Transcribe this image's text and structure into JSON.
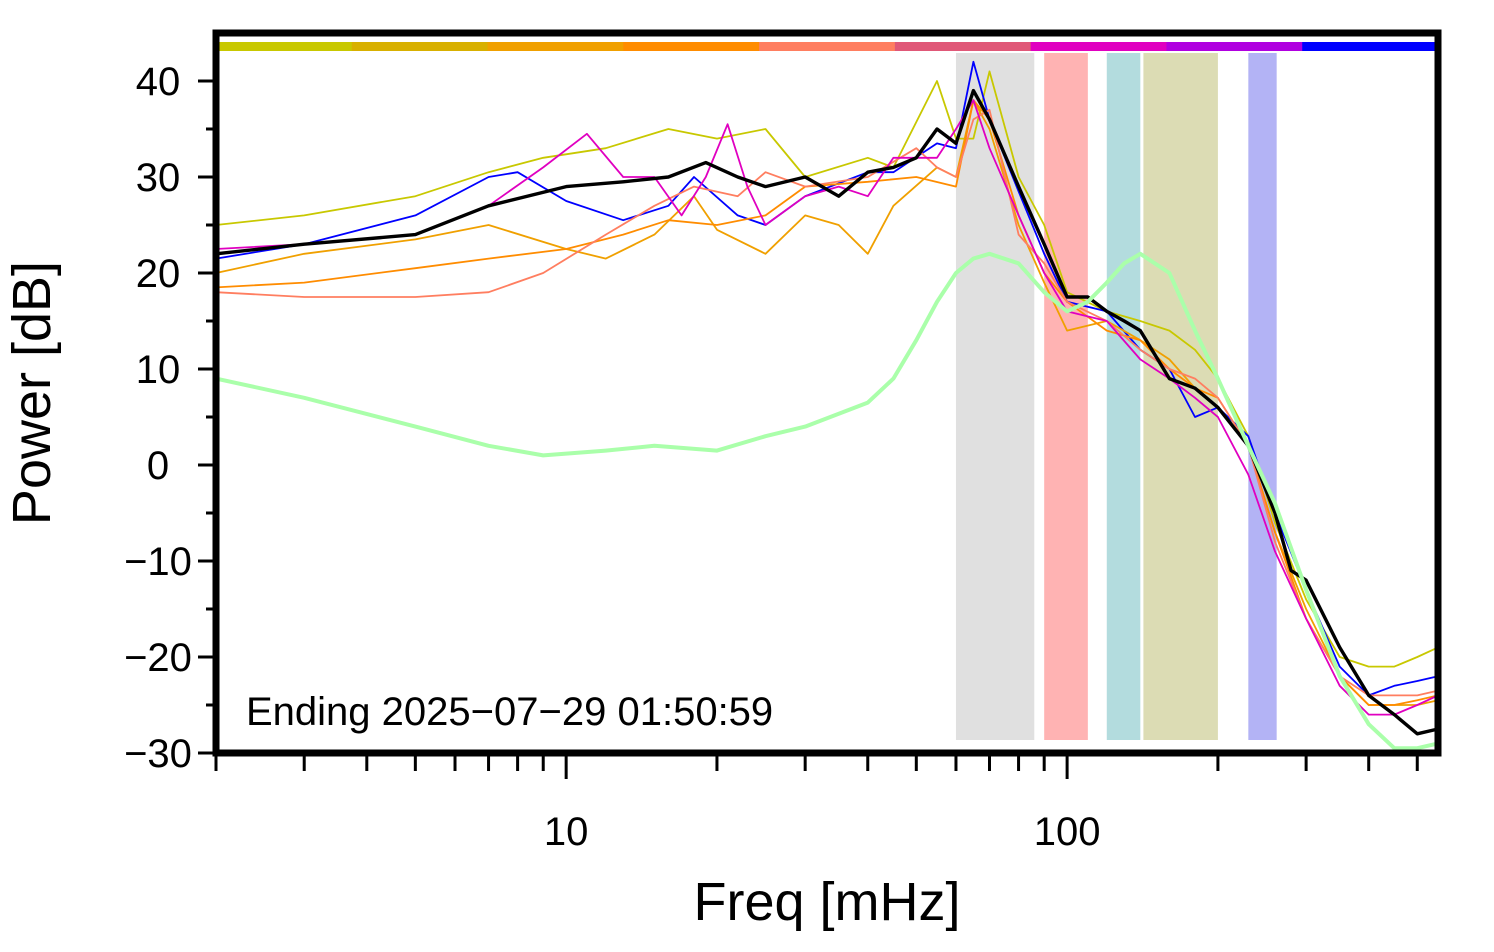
{
  "chart_data": {
    "type": "line",
    "xlabel": "Freq [mHz]",
    "ylabel": "Power [dB]",
    "xscale": "log",
    "xlim": [
      2,
      550
    ],
    "ylim": [
      -30,
      45
    ],
    "x_tick_labels": [
      {
        "value": 10,
        "label": "10"
      },
      {
        "value": 100,
        "label": "100"
      }
    ],
    "y_tick_labels": [
      {
        "value": 40,
        "label": "40"
      },
      {
        "value": 30,
        "label": "30"
      },
      {
        "value": 20,
        "label": "20"
      },
      {
        "value": 10,
        "label": "10"
      },
      {
        "value": 0,
        "label": "0"
      },
      {
        "value": -10,
        "label": "−10"
      },
      {
        "value": -20,
        "label": "−20"
      },
      {
        "value": -30,
        "label": "−30"
      }
    ],
    "annotation": "Ending 2025−07−29 01:50:59",
    "grid": false,
    "frequency_bands": [
      {
        "x0": 60,
        "x1": 86,
        "color": "#e0e0e0"
      },
      {
        "x0": 90,
        "x1": 110,
        "color": "#ffb3b3"
      },
      {
        "x0": 120,
        "x1": 140,
        "color": "#b3dcde"
      },
      {
        "x0": 142,
        "x1": 200,
        "color": "#dcdcb4"
      },
      {
        "x0": 230,
        "x1": 262,
        "color": "#b3b3f5"
      }
    ],
    "time_colorbar": [
      "#c8c800",
      "#d8b000",
      "#f0a000",
      "#ff8c00",
      "#ff7e60",
      "#e05878",
      "#e000c0",
      "#b000e0",
      "#0000ff"
    ],
    "series": [
      {
        "color": "#c8c800",
        "stroke_width": 1.8,
        "x": [
          2,
          3,
          5,
          7,
          9,
          12,
          16,
          20,
          25,
          30,
          40,
          45,
          55,
          60,
          65,
          70,
          80,
          90,
          100,
          120,
          140,
          160,
          180,
          200,
          230,
          260,
          300,
          350,
          400,
          450,
          500,
          550
        ],
        "y": [
          25,
          26,
          28,
          30.5,
          32,
          33,
          35,
          34,
          35,
          30,
          32,
          31,
          40,
          34,
          34,
          41,
          30,
          25,
          18,
          16,
          15,
          14,
          12,
          9,
          3,
          -6,
          -14,
          -20,
          -21,
          -21,
          -20,
          -19
        ]
      },
      {
        "color": "#0000ff",
        "stroke_width": 1.8,
        "x": [
          2,
          3,
          5,
          7,
          8,
          10,
          13,
          16,
          18,
          22,
          25,
          30,
          40,
          45,
          55,
          60,
          65,
          70,
          80,
          90,
          100,
          120,
          140,
          160,
          180,
          200,
          230,
          260,
          300,
          350,
          400,
          450,
          500,
          550
        ],
        "y": [
          21.5,
          23,
          26,
          30,
          30.5,
          27.5,
          25.5,
          27,
          30,
          26,
          25,
          28,
          30.5,
          30.5,
          33.5,
          33,
          42,
          36,
          28.5,
          22,
          17,
          16,
          12,
          10,
          5,
          6,
          3,
          -5,
          -13,
          -21,
          -24,
          -23,
          -22.5,
          -22
        ]
      },
      {
        "color": "#f0a000",
        "stroke_width": 1.8,
        "x": [
          2,
          3,
          5,
          7,
          10,
          12,
          15,
          18,
          20,
          25,
          30,
          35,
          40,
          45,
          55,
          60,
          65,
          70,
          80,
          90,
          100,
          120,
          140,
          160,
          180,
          200,
          230,
          260,
          300,
          350,
          400,
          450,
          500,
          550
        ],
        "y": [
          20,
          22,
          23.5,
          25,
          22.5,
          21.5,
          24,
          28,
          24.5,
          22,
          26,
          25,
          22,
          27,
          31,
          30,
          38,
          35,
          25,
          19,
          14,
          15,
          13,
          11,
          8,
          6,
          2,
          -7,
          -15,
          -22,
          -25,
          -25,
          -25,
          -24.5
        ]
      },
      {
        "color": "#ff8c00",
        "stroke_width": 1.8,
        "x": [
          2,
          3,
          5,
          7,
          10,
          13,
          16,
          20,
          25,
          30,
          40,
          50,
          60,
          65,
          70,
          80,
          90,
          100,
          120,
          140,
          160,
          180,
          200,
          230,
          260,
          300,
          350,
          400,
          450,
          500,
          550
        ],
        "y": [
          18.5,
          19,
          20.5,
          21.5,
          22.5,
          24,
          25.5,
          25,
          26,
          29,
          29.5,
          30,
          29,
          38,
          36,
          26,
          20,
          17,
          14,
          13,
          10,
          8,
          7,
          2,
          -7,
          -16,
          -22,
          -25,
          -25,
          -24.5,
          -24
        ]
      },
      {
        "color": "#ff7e60",
        "stroke_width": 1.8,
        "x": [
          2,
          3,
          5,
          7,
          9,
          12,
          15,
          18,
          22,
          25,
          30,
          40,
          50,
          55,
          60,
          65,
          70,
          80,
          90,
          100,
          120,
          140,
          160,
          180,
          200,
          230,
          260,
          300,
          350,
          400,
          450,
          500,
          550
        ],
        "y": [
          18,
          17.5,
          17.5,
          18,
          20,
          24,
          27,
          29,
          28,
          30.5,
          29,
          30,
          33,
          31,
          30,
          36,
          37,
          24,
          21,
          17,
          15,
          12,
          10,
          9,
          7,
          2,
          -8,
          -16,
          -22,
          -24,
          -24,
          -24,
          -23.5
        ]
      },
      {
        "color": "#e000c0",
        "stroke_width": 1.8,
        "x": [
          2,
          3,
          5,
          7,
          9,
          11,
          13,
          15,
          17,
          19,
          21,
          23,
          25,
          30,
          35,
          40,
          45,
          55,
          60,
          65,
          70,
          80,
          90,
          100,
          120,
          140,
          160,
          180,
          200,
          230,
          260,
          300,
          350,
          400,
          450,
          500,
          550
        ],
        "y": [
          22.5,
          23,
          24,
          27,
          31,
          34.5,
          30,
          30,
          26,
          30,
          35.5,
          29,
          25,
          28,
          29,
          28,
          32,
          32,
          35,
          38,
          33,
          26,
          20,
          16,
          15,
          11,
          9,
          7,
          5,
          -1,
          -9,
          -16,
          -23,
          -26,
          -26,
          -25,
          -24
        ]
      },
      {
        "color": "#000000",
        "stroke_width": 3.4,
        "x": [
          2,
          3,
          5,
          7,
          10,
          13,
          16,
          19,
          22,
          25,
          30,
          35,
          40,
          45,
          50,
          55,
          60,
          65,
          70,
          80,
          90,
          100,
          110,
          120,
          130,
          140,
          160,
          180,
          200,
          230,
          260,
          280,
          300,
          350,
          400,
          450,
          500,
          550
        ],
        "y": [
          22,
          23,
          24,
          27,
          29,
          29.5,
          30,
          31.5,
          30,
          29,
          30,
          28,
          30.5,
          31,
          32,
          35,
          33.5,
          39,
          36,
          29,
          23,
          17.5,
          17.5,
          16,
          15,
          14,
          9,
          8,
          6,
          2,
          -5,
          -11,
          -12,
          -19,
          -24,
          -26,
          -28,
          -27.5
        ]
      },
      {
        "color": "#aaffaa",
        "stroke_width": 4,
        "x": [
          2,
          3,
          5,
          7,
          9,
          12,
          15,
          20,
          25,
          30,
          40,
          45,
          50,
          55,
          60,
          65,
          70,
          80,
          90,
          100,
          110,
          120,
          130,
          140,
          160,
          180,
          200,
          230,
          260,
          300,
          350,
          400,
          450,
          500,
          550
        ],
        "y": [
          9,
          7,
          4,
          2,
          1,
          1.5,
          2,
          1.5,
          3,
          4,
          6.5,
          9,
          13,
          17,
          20,
          21.5,
          22,
          21,
          18,
          16,
          17,
          19,
          21,
          22,
          20,
          14,
          9,
          2,
          -4,
          -13,
          -22,
          -27,
          -29.5,
          -29.5,
          -29
        ]
      }
    ]
  }
}
